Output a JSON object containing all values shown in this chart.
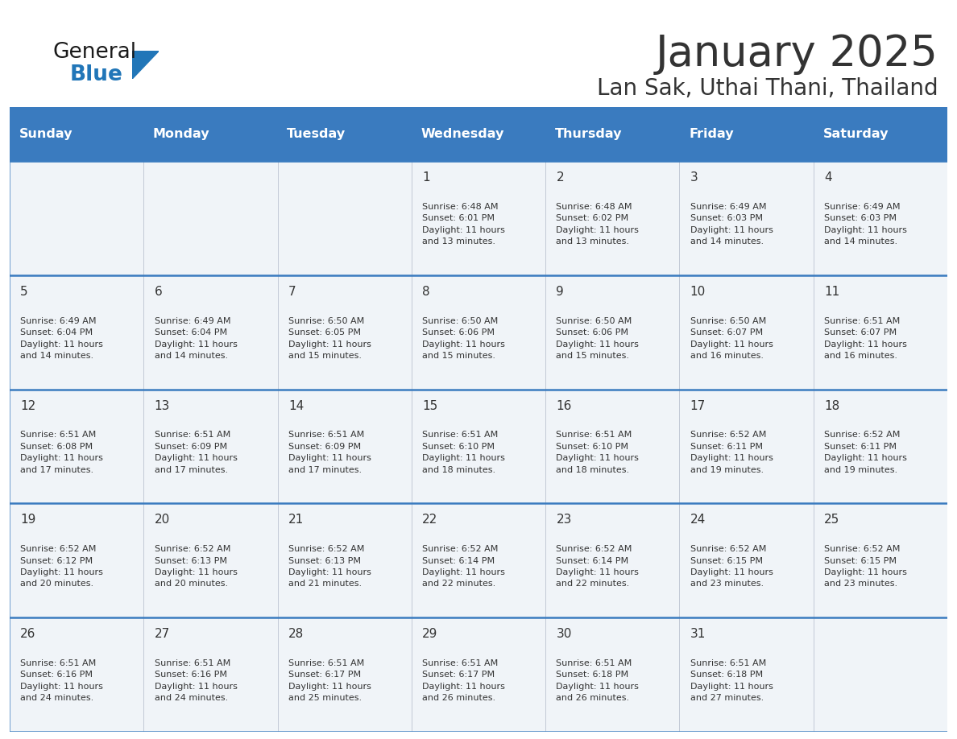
{
  "title": "January 2025",
  "subtitle": "Lan Sak, Uthai Thani, Thailand",
  "header_bg": "#3a7bbf",
  "header_text": "#ffffff",
  "cell_bg": "#f0f4f8",
  "border_color": "#3a7bbf",
  "text_color": "#333333",
  "days_of_week": [
    "Sunday",
    "Monday",
    "Tuesday",
    "Wednesday",
    "Thursday",
    "Friday",
    "Saturday"
  ],
  "weeks": [
    [
      {
        "day": "",
        "info": ""
      },
      {
        "day": "",
        "info": ""
      },
      {
        "day": "",
        "info": ""
      },
      {
        "day": "1",
        "info": "Sunrise: 6:48 AM\nSunset: 6:01 PM\nDaylight: 11 hours\nand 13 minutes."
      },
      {
        "day": "2",
        "info": "Sunrise: 6:48 AM\nSunset: 6:02 PM\nDaylight: 11 hours\nand 13 minutes."
      },
      {
        "day": "3",
        "info": "Sunrise: 6:49 AM\nSunset: 6:03 PM\nDaylight: 11 hours\nand 14 minutes."
      },
      {
        "day": "4",
        "info": "Sunrise: 6:49 AM\nSunset: 6:03 PM\nDaylight: 11 hours\nand 14 minutes."
      }
    ],
    [
      {
        "day": "5",
        "info": "Sunrise: 6:49 AM\nSunset: 6:04 PM\nDaylight: 11 hours\nand 14 minutes."
      },
      {
        "day": "6",
        "info": "Sunrise: 6:49 AM\nSunset: 6:04 PM\nDaylight: 11 hours\nand 14 minutes."
      },
      {
        "day": "7",
        "info": "Sunrise: 6:50 AM\nSunset: 6:05 PM\nDaylight: 11 hours\nand 15 minutes."
      },
      {
        "day": "8",
        "info": "Sunrise: 6:50 AM\nSunset: 6:06 PM\nDaylight: 11 hours\nand 15 minutes."
      },
      {
        "day": "9",
        "info": "Sunrise: 6:50 AM\nSunset: 6:06 PM\nDaylight: 11 hours\nand 15 minutes."
      },
      {
        "day": "10",
        "info": "Sunrise: 6:50 AM\nSunset: 6:07 PM\nDaylight: 11 hours\nand 16 minutes."
      },
      {
        "day": "11",
        "info": "Sunrise: 6:51 AM\nSunset: 6:07 PM\nDaylight: 11 hours\nand 16 minutes."
      }
    ],
    [
      {
        "day": "12",
        "info": "Sunrise: 6:51 AM\nSunset: 6:08 PM\nDaylight: 11 hours\nand 17 minutes."
      },
      {
        "day": "13",
        "info": "Sunrise: 6:51 AM\nSunset: 6:09 PM\nDaylight: 11 hours\nand 17 minutes."
      },
      {
        "day": "14",
        "info": "Sunrise: 6:51 AM\nSunset: 6:09 PM\nDaylight: 11 hours\nand 17 minutes."
      },
      {
        "day": "15",
        "info": "Sunrise: 6:51 AM\nSunset: 6:10 PM\nDaylight: 11 hours\nand 18 minutes."
      },
      {
        "day": "16",
        "info": "Sunrise: 6:51 AM\nSunset: 6:10 PM\nDaylight: 11 hours\nand 18 minutes."
      },
      {
        "day": "17",
        "info": "Sunrise: 6:52 AM\nSunset: 6:11 PM\nDaylight: 11 hours\nand 19 minutes."
      },
      {
        "day": "18",
        "info": "Sunrise: 6:52 AM\nSunset: 6:11 PM\nDaylight: 11 hours\nand 19 minutes."
      }
    ],
    [
      {
        "day": "19",
        "info": "Sunrise: 6:52 AM\nSunset: 6:12 PM\nDaylight: 11 hours\nand 20 minutes."
      },
      {
        "day": "20",
        "info": "Sunrise: 6:52 AM\nSunset: 6:13 PM\nDaylight: 11 hours\nand 20 minutes."
      },
      {
        "day": "21",
        "info": "Sunrise: 6:52 AM\nSunset: 6:13 PM\nDaylight: 11 hours\nand 21 minutes."
      },
      {
        "day": "22",
        "info": "Sunrise: 6:52 AM\nSunset: 6:14 PM\nDaylight: 11 hours\nand 22 minutes."
      },
      {
        "day": "23",
        "info": "Sunrise: 6:52 AM\nSunset: 6:14 PM\nDaylight: 11 hours\nand 22 minutes."
      },
      {
        "day": "24",
        "info": "Sunrise: 6:52 AM\nSunset: 6:15 PM\nDaylight: 11 hours\nand 23 minutes."
      },
      {
        "day": "25",
        "info": "Sunrise: 6:52 AM\nSunset: 6:15 PM\nDaylight: 11 hours\nand 23 minutes."
      }
    ],
    [
      {
        "day": "26",
        "info": "Sunrise: 6:51 AM\nSunset: 6:16 PM\nDaylight: 11 hours\nand 24 minutes."
      },
      {
        "day": "27",
        "info": "Sunrise: 6:51 AM\nSunset: 6:16 PM\nDaylight: 11 hours\nand 24 minutes."
      },
      {
        "day": "28",
        "info": "Sunrise: 6:51 AM\nSunset: 6:17 PM\nDaylight: 11 hours\nand 25 minutes."
      },
      {
        "day": "29",
        "info": "Sunrise: 6:51 AM\nSunset: 6:17 PM\nDaylight: 11 hours\nand 26 minutes."
      },
      {
        "day": "30",
        "info": "Sunrise: 6:51 AM\nSunset: 6:18 PM\nDaylight: 11 hours\nand 26 minutes."
      },
      {
        "day": "31",
        "info": "Sunrise: 6:51 AM\nSunset: 6:18 PM\nDaylight: 11 hours\nand 27 minutes."
      },
      {
        "day": "",
        "info": ""
      }
    ]
  ],
  "logo_general_color": "#1a1a1a",
  "logo_blue_color": "#2176b8",
  "logo_triangle_color": "#2176b8",
  "title_fontsize": 38,
  "subtitle_fontsize": 20,
  "header_fontsize": 11.5,
  "day_num_fontsize": 11,
  "info_fontsize": 8.0
}
